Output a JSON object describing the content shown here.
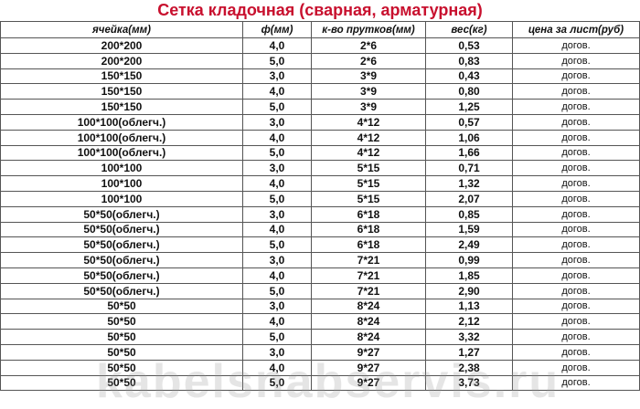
{
  "title": "Сетка кладочная (сварная, арматурная)",
  "watermark": "kabelsnabservis.ru",
  "columns": [
    "ячейка(мм)",
    "ф(мм)",
    "к-во прутков(мм)",
    "вес(кг)",
    "цена за лист(руб)"
  ],
  "rows": [
    [
      "200*200",
      "4,0",
      "2*6",
      "0,53",
      "догов."
    ],
    [
      "200*200",
      "5,0",
      "2*6",
      "0,83",
      "догов."
    ],
    [
      "150*150",
      "3,0",
      "3*9",
      "0,43",
      "догов."
    ],
    [
      "150*150",
      "4,0",
      "3*9",
      "0,80",
      "догов."
    ],
    [
      "150*150",
      "5,0",
      "3*9",
      "1,25",
      "догов."
    ],
    [
      "100*100(облегч.)",
      "3,0",
      "4*12",
      "0,57",
      "догов."
    ],
    [
      "100*100(облегч.)",
      "4,0",
      "4*12",
      "1,06",
      "догов."
    ],
    [
      "100*100(облегч.)",
      "5,0",
      "4*12",
      "1,66",
      "догов."
    ],
    [
      "100*100",
      "3,0",
      "5*15",
      "0,71",
      "догов."
    ],
    [
      "100*100",
      "4,0",
      "5*15",
      "1,32",
      "догов."
    ],
    [
      "100*100",
      "5,0",
      "5*15",
      "2,07",
      "догов."
    ],
    [
      "50*50(облегч.)",
      "3,0",
      "6*18",
      "0,85",
      "догов."
    ],
    [
      "50*50(облегч.)",
      "4,0",
      "6*18",
      "1,59",
      "догов."
    ],
    [
      "50*50(облегч.)",
      "5,0",
      "6*18",
      "2,49",
      "догов."
    ],
    [
      "50*50(облегч.)",
      "3,0",
      "7*21",
      "0,99",
      "догов."
    ],
    [
      "50*50(облегч.)",
      "4,0",
      "7*21",
      "1,85",
      "догов."
    ],
    [
      "50*50(облегч.)",
      "5,0",
      "7*21",
      "2,90",
      "догов."
    ],
    [
      "50*50",
      "3,0",
      "8*24",
      "1,13",
      "догов."
    ],
    [
      "50*50",
      "4,0",
      "8*24",
      "2,12",
      "догов."
    ],
    [
      "50*50",
      "5,0",
      "8*24",
      "3,32",
      "догов."
    ],
    [
      "50*50",
      "3,0",
      "9*27",
      "1,27",
      "догов."
    ],
    [
      "50*50",
      "4,0",
      "9*27",
      "2,38",
      "догов."
    ],
    [
      "50*50",
      "5,0",
      "9*27",
      "3,73",
      "догов."
    ]
  ],
  "colors": {
    "title": "#c8102e"
  }
}
